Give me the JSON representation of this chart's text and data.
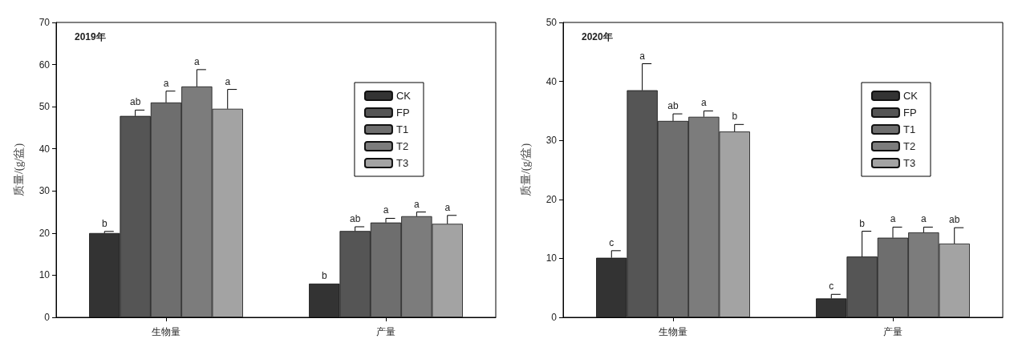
{
  "chart_data": [
    {
      "type": "bar",
      "title": "2019年",
      "ylabel": "质量/(g/盆)",
      "categories": [
        "生物量",
        "产量"
      ],
      "ylim": [
        0,
        70
      ],
      "yticks": [
        0,
        10,
        20,
        30,
        40,
        50,
        60,
        70
      ],
      "legend": "right",
      "grid": false,
      "series": [
        {
          "name": "CK",
          "color": "#333333",
          "values": [
            20,
            8
          ],
          "errors": [
            0.4,
            null
          ],
          "value_labels": [
            "b",
            "b"
          ]
        },
        {
          "name": "FP",
          "color": "#555555",
          "values": [
            47.8,
            20.5
          ],
          "errors": [
            1.4,
            1
          ],
          "value_labels": [
            "ab",
            "ab"
          ]
        },
        {
          "name": "T1",
          "color": "#6e6e6e",
          "values": [
            51,
            22.5
          ],
          "errors": [
            2.7,
            1
          ],
          "value_labels": [
            "a",
            "a"
          ]
        },
        {
          "name": "T2",
          "color": "#7c7c7c",
          "values": [
            54.8,
            24
          ],
          "errors": [
            4,
            1
          ],
          "value_labels": [
            "a",
            "a"
          ]
        },
        {
          "name": "T3",
          "color": "#a3a3a3",
          "values": [
            49.5,
            22.2
          ],
          "errors": [
            4.6,
            2
          ],
          "value_labels": [
            "a",
            "a"
          ]
        }
      ]
    },
    {
      "type": "bar",
      "title": "2020年",
      "ylabel": "质量/(g/盆)",
      "categories": [
        "生物量",
        "产量"
      ],
      "ylim": [
        0,
        50
      ],
      "yticks": [
        0,
        10,
        20,
        30,
        40,
        50
      ],
      "legend": "right",
      "grid": false,
      "series": [
        {
          "name": "CK",
          "color": "#333333",
          "values": [
            10.1,
            3.2
          ],
          "errors": [
            1.2,
            0.7
          ],
          "value_labels": [
            "c",
            "c"
          ]
        },
        {
          "name": "FP",
          "color": "#555555",
          "values": [
            38.5,
            10.3
          ],
          "errors": [
            4.5,
            4.3
          ],
          "value_labels": [
            "a",
            "b"
          ]
        },
        {
          "name": "T1",
          "color": "#6e6e6e",
          "values": [
            33.3,
            13.5
          ],
          "errors": [
            1.2,
            1.8
          ],
          "value_labels": [
            "ab",
            "a"
          ]
        },
        {
          "name": "T2",
          "color": "#7c7c7c",
          "values": [
            34,
            14.4
          ],
          "errors": [
            1,
            0.9
          ],
          "value_labels": [
            "a",
            "a"
          ]
        },
        {
          "name": "T3",
          "color": "#a3a3a3",
          "values": [
            31.5,
            12.5
          ],
          "errors": [
            1.2,
            2.7
          ],
          "value_labels": [
            "b",
            "ab"
          ]
        }
      ]
    }
  ]
}
